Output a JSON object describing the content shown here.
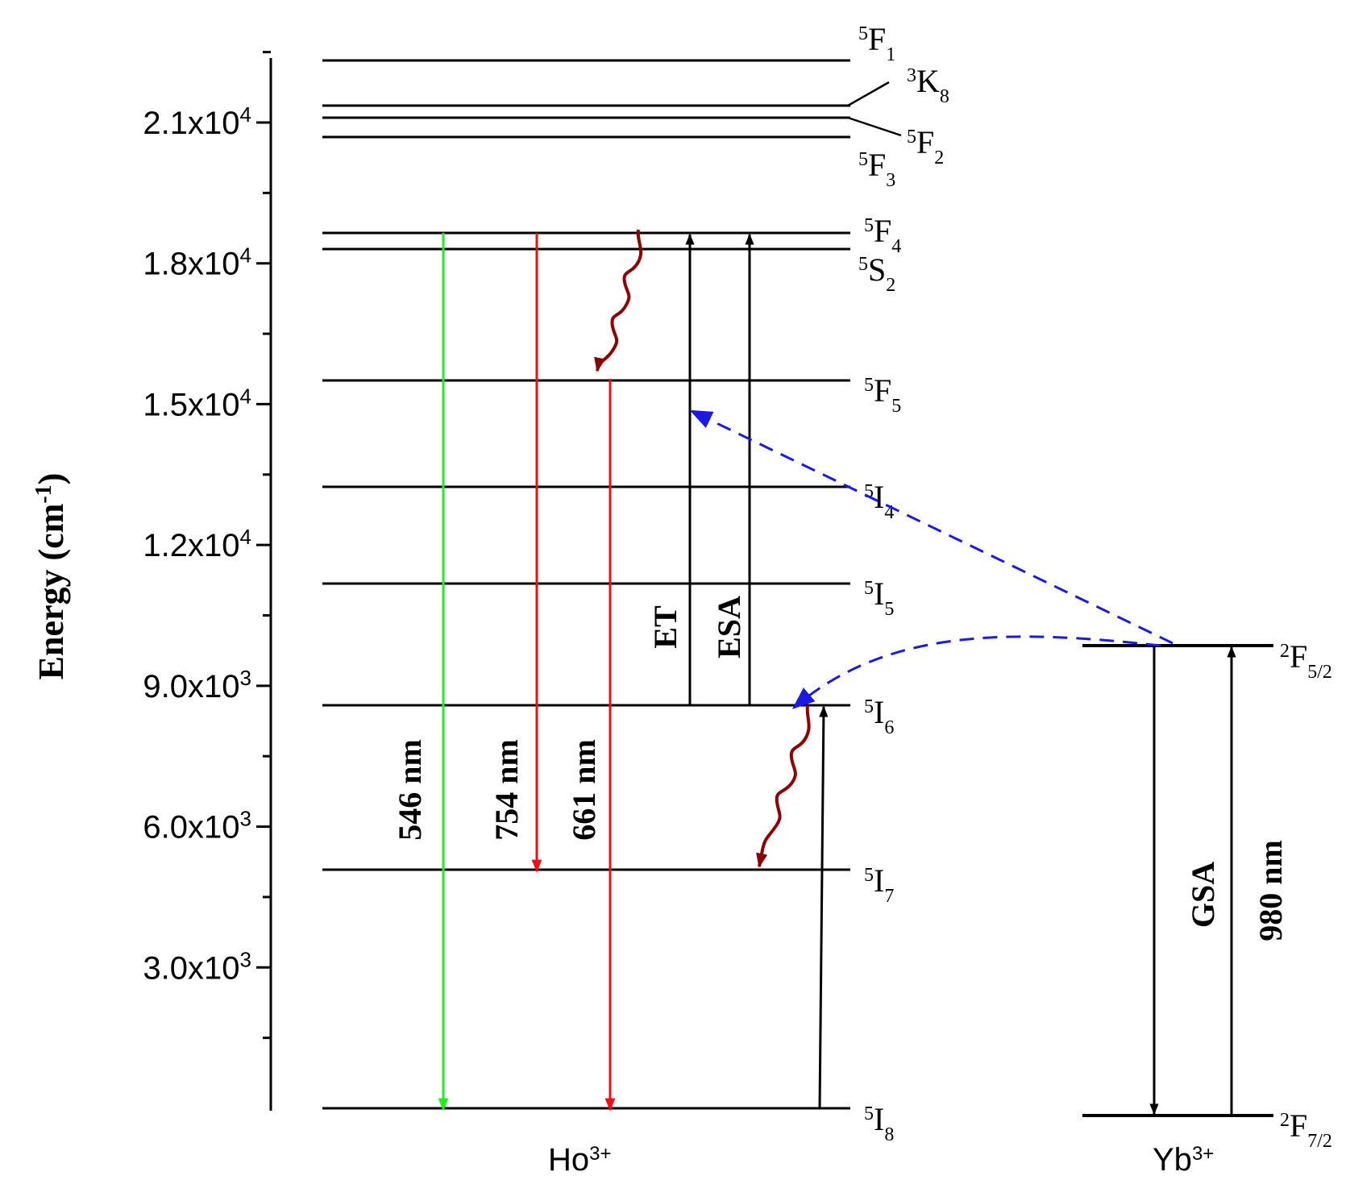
{
  "axis": {
    "label": "Energy (cm",
    "label_sup": "-1",
    "label_close": ")",
    "ticks": [
      {
        "mantissa": "2.1x10",
        "exp": "4",
        "value": 21000
      },
      {
        "mantissa": "1.8x10",
        "exp": "4",
        "value": 18000
      },
      {
        "mantissa": "1.5x10",
        "exp": "4",
        "value": 15000
      },
      {
        "mantissa": "1.2x10",
        "exp": "4",
        "value": 12000
      },
      {
        "mantissa": "9.0x10",
        "exp": "3",
        "value": 9000
      },
      {
        "mantissa": "6.0x10",
        "exp": "3",
        "value": 6000
      },
      {
        "mantissa": "3.0x10",
        "exp": "3",
        "value": 3000
      }
    ]
  },
  "ion_labels": {
    "ho": {
      "base": "Ho",
      "sup": "3+"
    },
    "yb": {
      "base": "Yb",
      "sup": "3+"
    }
  },
  "ho_levels": [
    {
      "pre": "5",
      "letter": "F",
      "sub": "1"
    },
    {
      "pre": "3",
      "letter": "K",
      "sub": "8"
    },
    {
      "pre": "5",
      "letter": "F",
      "sub": "2"
    },
    {
      "pre": "5",
      "letter": "F",
      "sub": "3"
    },
    {
      "pre": "5",
      "letter": "F",
      "sub": "4"
    },
    {
      "pre": "5",
      "letter": "S",
      "sub": "2"
    },
    {
      "pre": "5",
      "letter": "F",
      "sub": "5"
    },
    {
      "pre": "5",
      "letter": "I",
      "sub": "4"
    },
    {
      "pre": "5",
      "letter": "I",
      "sub": "5"
    },
    {
      "pre": "5",
      "letter": "I",
      "sub": "6"
    },
    {
      "pre": "5",
      "letter": "I",
      "sub": "7"
    },
    {
      "pre": "5",
      "letter": "I",
      "sub": "8"
    }
  ],
  "yb_levels": [
    {
      "pre": "2",
      "letter": "F",
      "sub": "5/2"
    },
    {
      "pre": "2",
      "letter": "F",
      "sub": "7/2"
    }
  ],
  "transitions": {
    "t546": "546 nm",
    "t754": "754 nm",
    "t661": "661 nm",
    "et": "ET",
    "esa": "ESA",
    "gsa": "GSA",
    "t980": "980 nm"
  },
  "colors": {
    "green_emission": "#22ee22",
    "red_emission": "#ee1111",
    "nonradiative": "#8b0000",
    "energy_transfer": "#1a1ae0",
    "axis": "#000000"
  }
}
